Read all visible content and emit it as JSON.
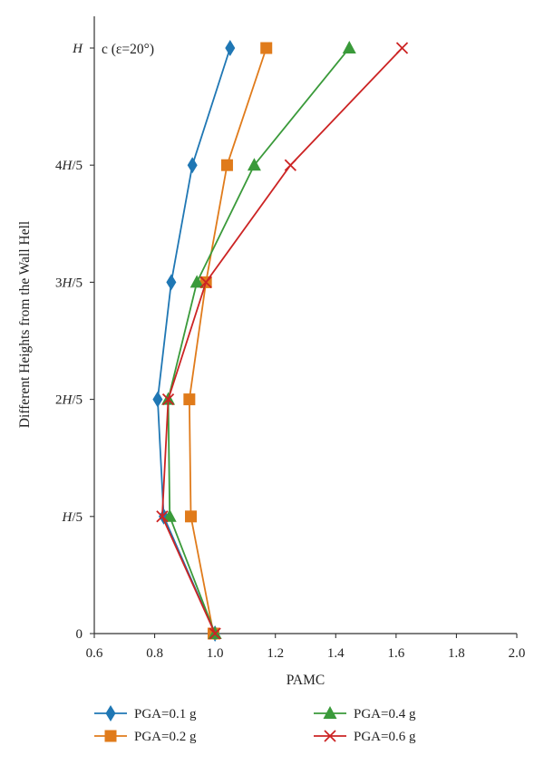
{
  "chart_data": {
    "type": "line",
    "panel_label": "c (ε=20°)",
    "xlabel": "PAMC",
    "ylabel": "Different Heights from the Wall Hell",
    "xlim": [
      0.6,
      2.0
    ],
    "x_ticks": [
      "0.6",
      "0.8",
      "1.0",
      "1.2",
      "1.4",
      "1.6",
      "1.8",
      "2.0"
    ],
    "categories": [
      "0",
      "H/5",
      "2H/5",
      "3H/5",
      "4H/5",
      "H"
    ],
    "grid": false,
    "legend_position": "bottom",
    "series": [
      {
        "name": "PGA=0.1 g",
        "marker": "diamond",
        "color": "#1f77b4",
        "x": [
          1.0,
          0.83,
          0.81,
          0.855,
          0.925,
          1.05
        ]
      },
      {
        "name": "PGA=0.2 g",
        "marker": "square",
        "color": "#e07b1b",
        "x": [
          0.995,
          0.92,
          0.915,
          0.97,
          1.04,
          1.17
        ]
      },
      {
        "name": "PGA=0.4 g",
        "marker": "triangle",
        "color": "#3a9a3a",
        "x": [
          1.0,
          0.85,
          0.845,
          0.94,
          1.13,
          1.445
        ]
      },
      {
        "name": "PGA=0.6 g",
        "marker": "x",
        "color": "#cc2424",
        "x": [
          1.0,
          0.825,
          0.845,
          0.97,
          1.25,
          1.62
        ]
      }
    ]
  }
}
